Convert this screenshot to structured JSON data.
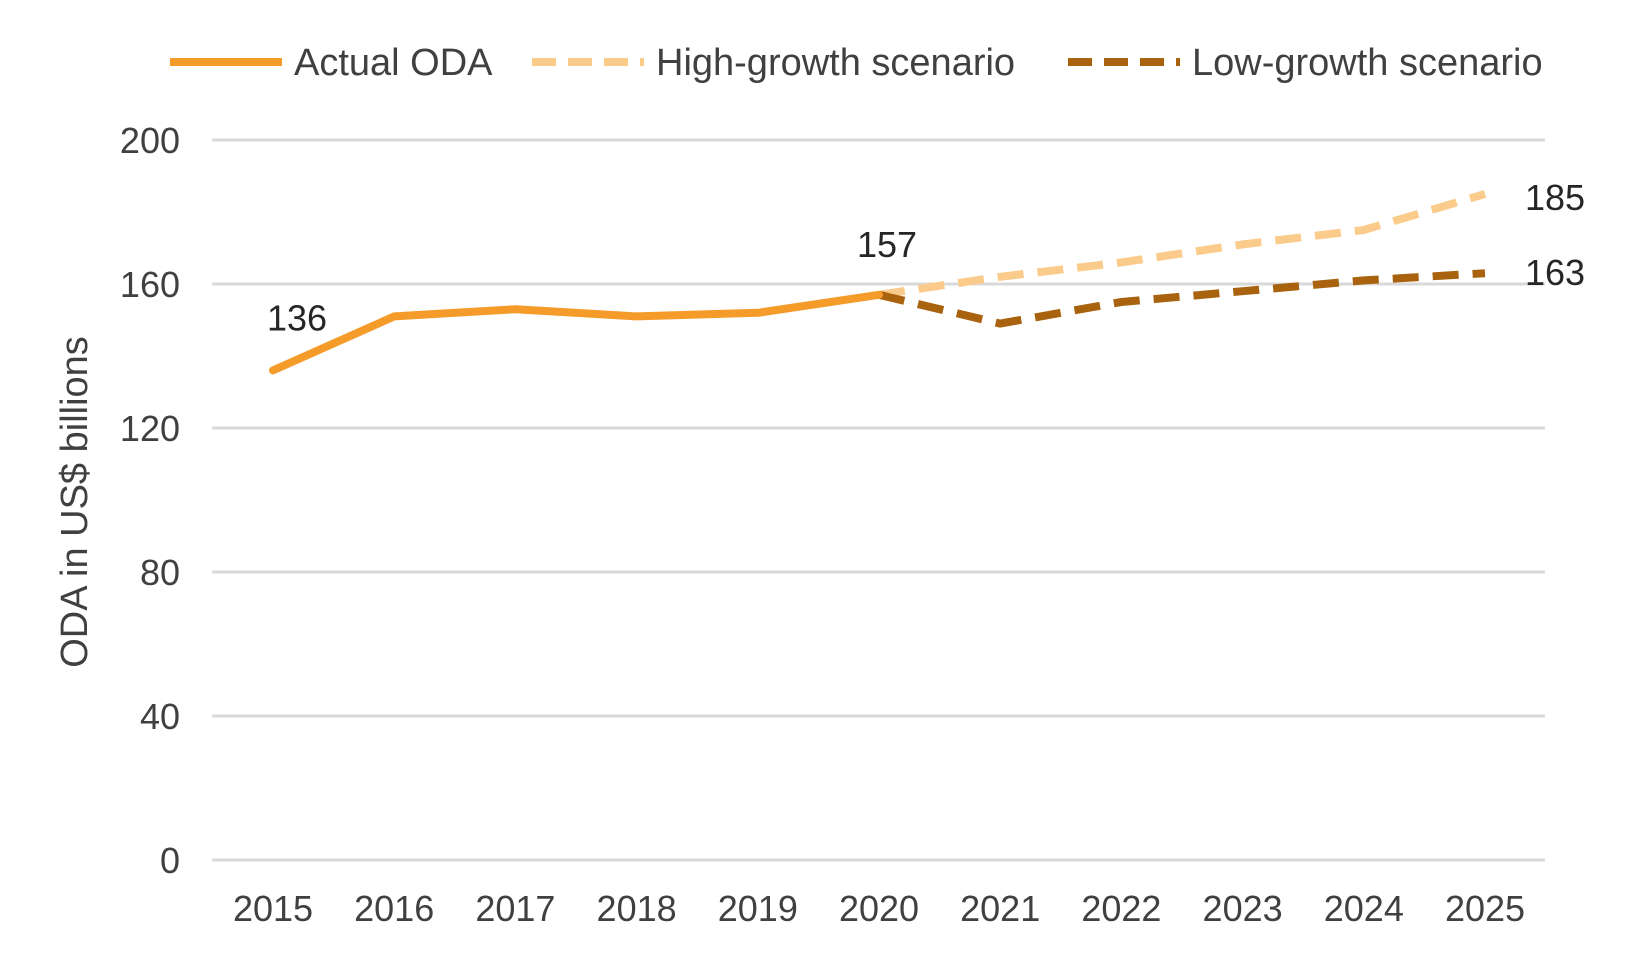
{
  "chart_data": {
    "type": "line",
    "title": "",
    "xlabel": "",
    "ylabel": "ODA in US$ billions",
    "ylim": [
      0,
      200
    ],
    "yticks": [
      0,
      40,
      80,
      120,
      160,
      200
    ],
    "categories": [
      "2015",
      "2016",
      "2017",
      "2018",
      "2019",
      "2020",
      "2021",
      "2022",
      "2023",
      "2024",
      "2025"
    ],
    "grid": true,
    "legend_position": "top",
    "series": [
      {
        "name": "Actual ODA",
        "style": "solid",
        "color": "#f59b2a",
        "x": [
          "2015",
          "2016",
          "2017",
          "2018",
          "2019",
          "2020"
        ],
        "values": [
          136,
          151,
          153,
          151,
          152,
          157
        ]
      },
      {
        "name": "High-growth scenario",
        "style": "dashed",
        "color": "#fbcb8c",
        "x": [
          "2020",
          "2021",
          "2022",
          "2023",
          "2024",
          "2025"
        ],
        "values": [
          157,
          162,
          166,
          171,
          175,
          185
        ]
      },
      {
        "name": "Low-growth scenario",
        "style": "dashed",
        "color": "#a9620e",
        "x": [
          "2020",
          "2021",
          "2022",
          "2023",
          "2024",
          "2025"
        ],
        "values": [
          157,
          149,
          155,
          158,
          161,
          163
        ]
      }
    ],
    "data_labels": [
      {
        "series": "Actual ODA",
        "x": "2015",
        "text": "136"
      },
      {
        "series": "Actual ODA",
        "x": "2020",
        "text": "157"
      },
      {
        "series": "High-growth scenario",
        "x": "2025",
        "text": "185"
      },
      {
        "series": "Low-growth scenario",
        "x": "2025",
        "text": "163"
      }
    ]
  }
}
